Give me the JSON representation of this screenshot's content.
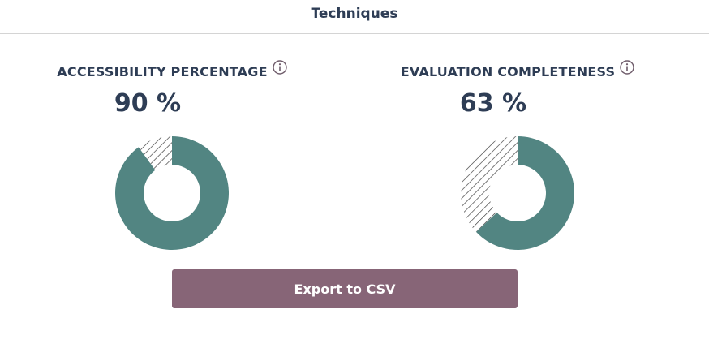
{
  "header": {
    "title": "Techniques"
  },
  "panels": [
    {
      "title": "ACCESSIBILITY PERCENTAGE",
      "value_label": "90 %",
      "percent": 90
    },
    {
      "title": "EVALUATION COMPLETENESS",
      "value_label": "63 %",
      "percent": 63
    }
  ],
  "export": {
    "label": "Export to CSV"
  },
  "colors": {
    "filled": "#528582",
    "accent": "#876577",
    "text": "#2e3d55",
    "icon": "#6e5b6a"
  },
  "icons": {
    "info": "info-circle-icon"
  }
}
